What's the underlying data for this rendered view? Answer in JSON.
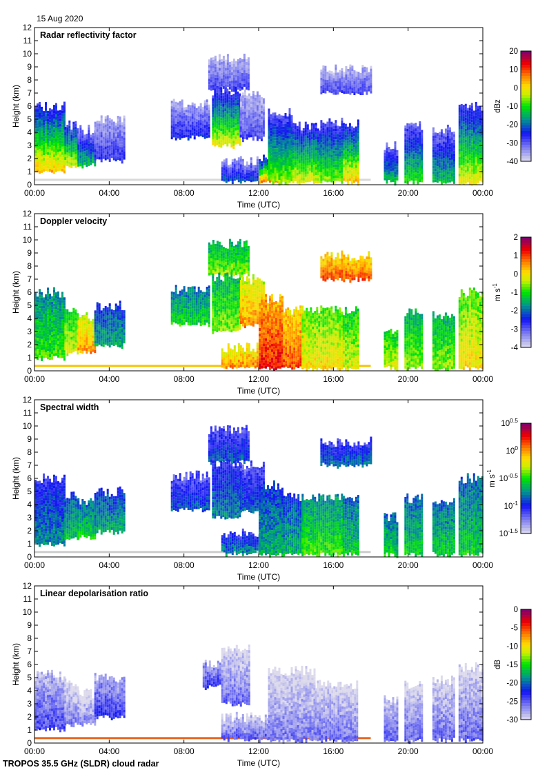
{
  "header": {
    "date": "15 Aug 2020"
  },
  "footer": {
    "instrument": "TROPOS 35.5 GHz (SLDR) cloud radar"
  },
  "chart_data": [
    {
      "type": "heatmap",
      "title": "Radar reflectivity factor",
      "xlabel": "Time (UTC)",
      "ylabel": "Height (km)",
      "x_ticks": [
        "00:00",
        "04:00",
        "08:00",
        "12:00",
        "16:00",
        "20:00",
        "00:00"
      ],
      "xlim_hours": [
        0,
        24
      ],
      "y_ticks": [
        "0",
        "1",
        "2",
        "3",
        "4",
        "5",
        "6",
        "7",
        "8",
        "9",
        "10",
        "11",
        "12"
      ],
      "ylim": [
        0,
        12
      ],
      "colorbar": {
        "label": "dBz",
        "ticks": [
          "20",
          "10",
          "0",
          "-10",
          "-20",
          "-30",
          "-40"
        ],
        "range": [
          -40,
          20
        ]
      },
      "clutter_color": "#d8d8d8",
      "regions": [
        {
          "t0": 0.0,
          "t1": 1.6,
          "h0": 1.0,
          "h1": 6.0,
          "v": 0.55
        },
        {
          "t0": 1.6,
          "t1": 2.3,
          "h0": 1.4,
          "h1": 4.6,
          "v": 0.5
        },
        {
          "t0": 2.3,
          "t1": 3.2,
          "h0": 1.5,
          "h1": 4.2,
          "v": 0.35
        },
        {
          "t0": 3.2,
          "t1": 4.8,
          "h0": 1.9,
          "h1": 5.0,
          "v": 0.18
        },
        {
          "t0": 7.3,
          "t1": 9.3,
          "h0": 3.6,
          "h1": 6.2,
          "v": 0.2
        },
        {
          "t0": 9.3,
          "t1": 11.5,
          "h0": 7.3,
          "h1": 9.7,
          "v": 0.15
        },
        {
          "t0": 9.5,
          "t1": 11.0,
          "h0": 3.0,
          "h1": 7.2,
          "v": 0.5
        },
        {
          "t0": 11.0,
          "t1": 12.3,
          "h0": 3.5,
          "h1": 7.0,
          "v": 0.15
        },
        {
          "t0": 10.0,
          "t1": 12.0,
          "h0": 0.3,
          "h1": 1.8,
          "v": 0.25
        },
        {
          "t0": 12.0,
          "t1": 13.3,
          "h0": 0.2,
          "h1": 2.2,
          "v": 0.6
        },
        {
          "t0": 12.5,
          "t1": 13.8,
          "h0": 0.2,
          "h1": 5.5,
          "v": 0.45
        },
        {
          "t0": 13.8,
          "t1": 15.3,
          "h0": 0.2,
          "h1": 4.5,
          "v": 0.5
        },
        {
          "t0": 15.3,
          "t1": 16.5,
          "h0": 0.2,
          "h1": 4.8,
          "v": 0.45
        },
        {
          "t0": 16.5,
          "t1": 17.3,
          "h0": 0.2,
          "h1": 4.6,
          "v": 0.55
        },
        {
          "t0": 15.3,
          "t1": 18.0,
          "h0": 7.0,
          "h1": 8.8,
          "v": 0.15
        },
        {
          "t0": 18.7,
          "t1": 19.4,
          "h0": 0.2,
          "h1": 3.0,
          "v": 0.35
        },
        {
          "t0": 19.8,
          "t1": 20.7,
          "h0": 0.2,
          "h1": 4.5,
          "v": 0.4
        },
        {
          "t0": 21.3,
          "t1": 22.5,
          "h0": 0.2,
          "h1": 4.2,
          "v": 0.35
        },
        {
          "t0": 22.7,
          "t1": 24.0,
          "h0": 0.2,
          "h1": 6.0,
          "v": 0.5
        }
      ]
    },
    {
      "type": "heatmap",
      "title": "Doppler velocity",
      "xlabel": "Time (UTC)",
      "ylabel": "Height (km)",
      "x_ticks": [
        "00:00",
        "04:00",
        "08:00",
        "12:00",
        "16:00",
        "20:00",
        "00:00"
      ],
      "xlim_hours": [
        0,
        24
      ],
      "y_ticks": [
        "0",
        "1",
        "2",
        "3",
        "4",
        "5",
        "6",
        "7",
        "8",
        "9",
        "10",
        "11",
        "12"
      ],
      "ylim": [
        0,
        12
      ],
      "colorbar": {
        "label": "m s",
        "label_sup": "-1",
        "ticks": [
          "2",
          "1",
          "0",
          "-1",
          "-2",
          "-3",
          "-4"
        ],
        "range": [
          -4,
          2
        ]
      },
      "clutter_color": "#f5c400",
      "regions": [
        {
          "t0": 0.0,
          "t1": 1.6,
          "h0": 1.0,
          "h1": 6.0,
          "v": 0.45
        },
        {
          "t0": 1.6,
          "t1": 2.3,
          "h0": 1.4,
          "h1": 4.6,
          "v": 0.55
        },
        {
          "t0": 2.3,
          "t1": 3.2,
          "h0": 1.5,
          "h1": 4.2,
          "v": 0.68
        },
        {
          "t0": 3.2,
          "t1": 4.8,
          "h0": 1.9,
          "h1": 5.0,
          "v": 0.35
        },
        {
          "t0": 7.3,
          "t1": 9.3,
          "h0": 3.6,
          "h1": 6.2,
          "v": 0.42
        },
        {
          "t0": 9.3,
          "t1": 11.5,
          "h0": 7.3,
          "h1": 9.7,
          "v": 0.5
        },
        {
          "t0": 9.5,
          "t1": 11.0,
          "h0": 3.0,
          "h1": 7.2,
          "v": 0.5
        },
        {
          "t0": 11.0,
          "t1": 12.3,
          "h0": 3.5,
          "h1": 7.0,
          "v": 0.68
        },
        {
          "t0": 10.0,
          "t1": 12.0,
          "h0": 0.3,
          "h1": 1.8,
          "v": 0.7
        },
        {
          "t0": 12.0,
          "t1": 13.3,
          "h0": 0.2,
          "h1": 5.5,
          "v": 0.8
        },
        {
          "t0": 13.3,
          "t1": 14.3,
          "h0": 0.2,
          "h1": 4.6,
          "v": 0.75
        },
        {
          "t0": 14.3,
          "t1": 16.5,
          "h0": 0.2,
          "h1": 4.6,
          "v": 0.6
        },
        {
          "t0": 16.5,
          "t1": 17.3,
          "h0": 0.2,
          "h1": 4.6,
          "v": 0.55
        },
        {
          "t0": 15.3,
          "t1": 18.0,
          "h0": 7.0,
          "h1": 8.8,
          "v": 0.75
        },
        {
          "t0": 18.7,
          "t1": 19.4,
          "h0": 0.2,
          "h1": 3.0,
          "v": 0.55
        },
        {
          "t0": 19.8,
          "t1": 20.7,
          "h0": 0.2,
          "h1": 4.5,
          "v": 0.5
        },
        {
          "t0": 21.3,
          "t1": 22.5,
          "h0": 0.2,
          "h1": 4.2,
          "v": 0.5
        },
        {
          "t0": 22.7,
          "t1": 24.0,
          "h0": 0.2,
          "h1": 6.0,
          "v": 0.6
        }
      ]
    },
    {
      "type": "heatmap",
      "title": "Spectral width",
      "xlabel": "Time (UTC)",
      "ylabel": "Height (km)",
      "x_ticks": [
        "00:00",
        "04:00",
        "08:00",
        "12:00",
        "16:00",
        "20:00",
        "00:00"
      ],
      "xlim_hours": [
        0,
        24
      ],
      "y_ticks": [
        "0",
        "1",
        "2",
        "3",
        "4",
        "5",
        "6",
        "7",
        "8",
        "9",
        "10",
        "11",
        "12"
      ],
      "ylim": [
        0,
        12
      ],
      "colorbar": {
        "label": "m s",
        "label_sup": "-1",
        "ticks": [
          "10^0.5",
          "10^0",
          "10^-0.5",
          "10^-1",
          "10^-1.5"
        ],
        "range": [
          -1.5,
          0.5
        ]
      },
      "clutter_color": "#cccccc",
      "regions": [
        {
          "t0": 0.0,
          "t1": 1.6,
          "h0": 1.0,
          "h1": 6.0,
          "v": 0.3
        },
        {
          "t0": 1.6,
          "t1": 2.3,
          "h0": 1.4,
          "h1": 4.6,
          "v": 0.38
        },
        {
          "t0": 2.3,
          "t1": 3.2,
          "h0": 1.5,
          "h1": 4.2,
          "v": 0.4
        },
        {
          "t0": 3.2,
          "t1": 4.8,
          "h0": 1.9,
          "h1": 5.0,
          "v": 0.35
        },
        {
          "t0": 7.3,
          "t1": 9.3,
          "h0": 3.6,
          "h1": 6.2,
          "v": 0.25
        },
        {
          "t0": 9.3,
          "t1": 11.5,
          "h0": 7.3,
          "h1": 9.7,
          "v": 0.25
        },
        {
          "t0": 9.5,
          "t1": 11.0,
          "h0": 3.0,
          "h1": 7.2,
          "v": 0.3
        },
        {
          "t0": 11.0,
          "t1": 12.3,
          "h0": 3.5,
          "h1": 7.0,
          "v": 0.25
        },
        {
          "t0": 10.0,
          "t1": 12.0,
          "h0": 0.3,
          "h1": 1.8,
          "v": 0.3
        },
        {
          "t0": 12.0,
          "t1": 13.3,
          "h0": 0.2,
          "h1": 5.5,
          "v": 0.35
        },
        {
          "t0": 13.3,
          "t1": 14.3,
          "h0": 0.2,
          "h1": 4.6,
          "v": 0.35
        },
        {
          "t0": 14.3,
          "t1": 16.5,
          "h0": 0.2,
          "h1": 4.6,
          "v": 0.45
        },
        {
          "t0": 16.5,
          "t1": 17.3,
          "h0": 0.2,
          "h1": 4.6,
          "v": 0.4
        },
        {
          "t0": 15.3,
          "t1": 18.0,
          "h0": 7.0,
          "h1": 8.8,
          "v": 0.28
        },
        {
          "t0": 18.7,
          "t1": 19.4,
          "h0": 0.2,
          "h1": 3.0,
          "v": 0.4
        },
        {
          "t0": 19.8,
          "t1": 20.7,
          "h0": 0.2,
          "h1": 4.5,
          "v": 0.4
        },
        {
          "t0": 21.3,
          "t1": 22.5,
          "h0": 0.2,
          "h1": 4.2,
          "v": 0.4
        },
        {
          "t0": 22.7,
          "t1": 24.0,
          "h0": 0.2,
          "h1": 6.0,
          "v": 0.4
        }
      ]
    },
    {
      "type": "heatmap",
      "title": "Linear depolarisation ratio",
      "xlabel": "Time (UTC)",
      "ylabel": "Height (km)",
      "x_ticks": [
        "00:00",
        "04:00",
        "08:00",
        "12:00",
        "16:00",
        "20:00",
        "00:00"
      ],
      "xlim_hours": [
        0,
        24
      ],
      "y_ticks": [
        "0",
        "1",
        "2",
        "3",
        "4",
        "5",
        "6",
        "7",
        "8",
        "9",
        "10",
        "11",
        "12"
      ],
      "ylim": [
        0,
        12
      ],
      "colorbar": {
        "label": "dB",
        "ticks": [
          "0",
          "-5",
          "-10",
          "-15",
          "-20",
          "-25",
          "-30"
        ],
        "range": [
          -30,
          0
        ]
      },
      "clutter_color": "#e8641e",
      "regions": [
        {
          "t0": 0.0,
          "t1": 1.6,
          "h0": 1.1,
          "h1": 5.2,
          "v": 0.12
        },
        {
          "t0": 1.6,
          "t1": 2.3,
          "h0": 1.4,
          "h1": 4.6,
          "v": 0.06
        },
        {
          "t0": 2.3,
          "t1": 3.2,
          "h0": 1.5,
          "h1": 3.8,
          "v": 0.05
        },
        {
          "t0": 3.2,
          "t1": 4.8,
          "h0": 2.0,
          "h1": 5.0,
          "v": 0.15
        },
        {
          "t0": 9.0,
          "t1": 10.0,
          "h0": 4.3,
          "h1": 6.0,
          "v": 0.15
        },
        {
          "t0": 10.0,
          "t1": 11.5,
          "h0": 3.0,
          "h1": 7.2,
          "v": 0.08
        },
        {
          "t0": 10.0,
          "t1": 12.5,
          "h0": 0.3,
          "h1": 2.0,
          "v": 0.1
        },
        {
          "t0": 12.5,
          "t1": 15.0,
          "h0": 0.2,
          "h1": 5.5,
          "v": 0.06
        },
        {
          "t0": 15.0,
          "t1": 17.3,
          "h0": 0.2,
          "h1": 4.5,
          "v": 0.07
        },
        {
          "t0": 18.7,
          "t1": 19.4,
          "h0": 0.2,
          "h1": 3.4,
          "v": 0.1
        },
        {
          "t0": 19.8,
          "t1": 20.7,
          "h0": 0.2,
          "h1": 4.5,
          "v": 0.08
        },
        {
          "t0": 21.3,
          "t1": 22.5,
          "h0": 0.2,
          "h1": 4.8,
          "v": 0.08
        },
        {
          "t0": 22.7,
          "t1": 24.0,
          "h0": 0.2,
          "h1": 5.8,
          "v": 0.08
        }
      ]
    }
  ]
}
